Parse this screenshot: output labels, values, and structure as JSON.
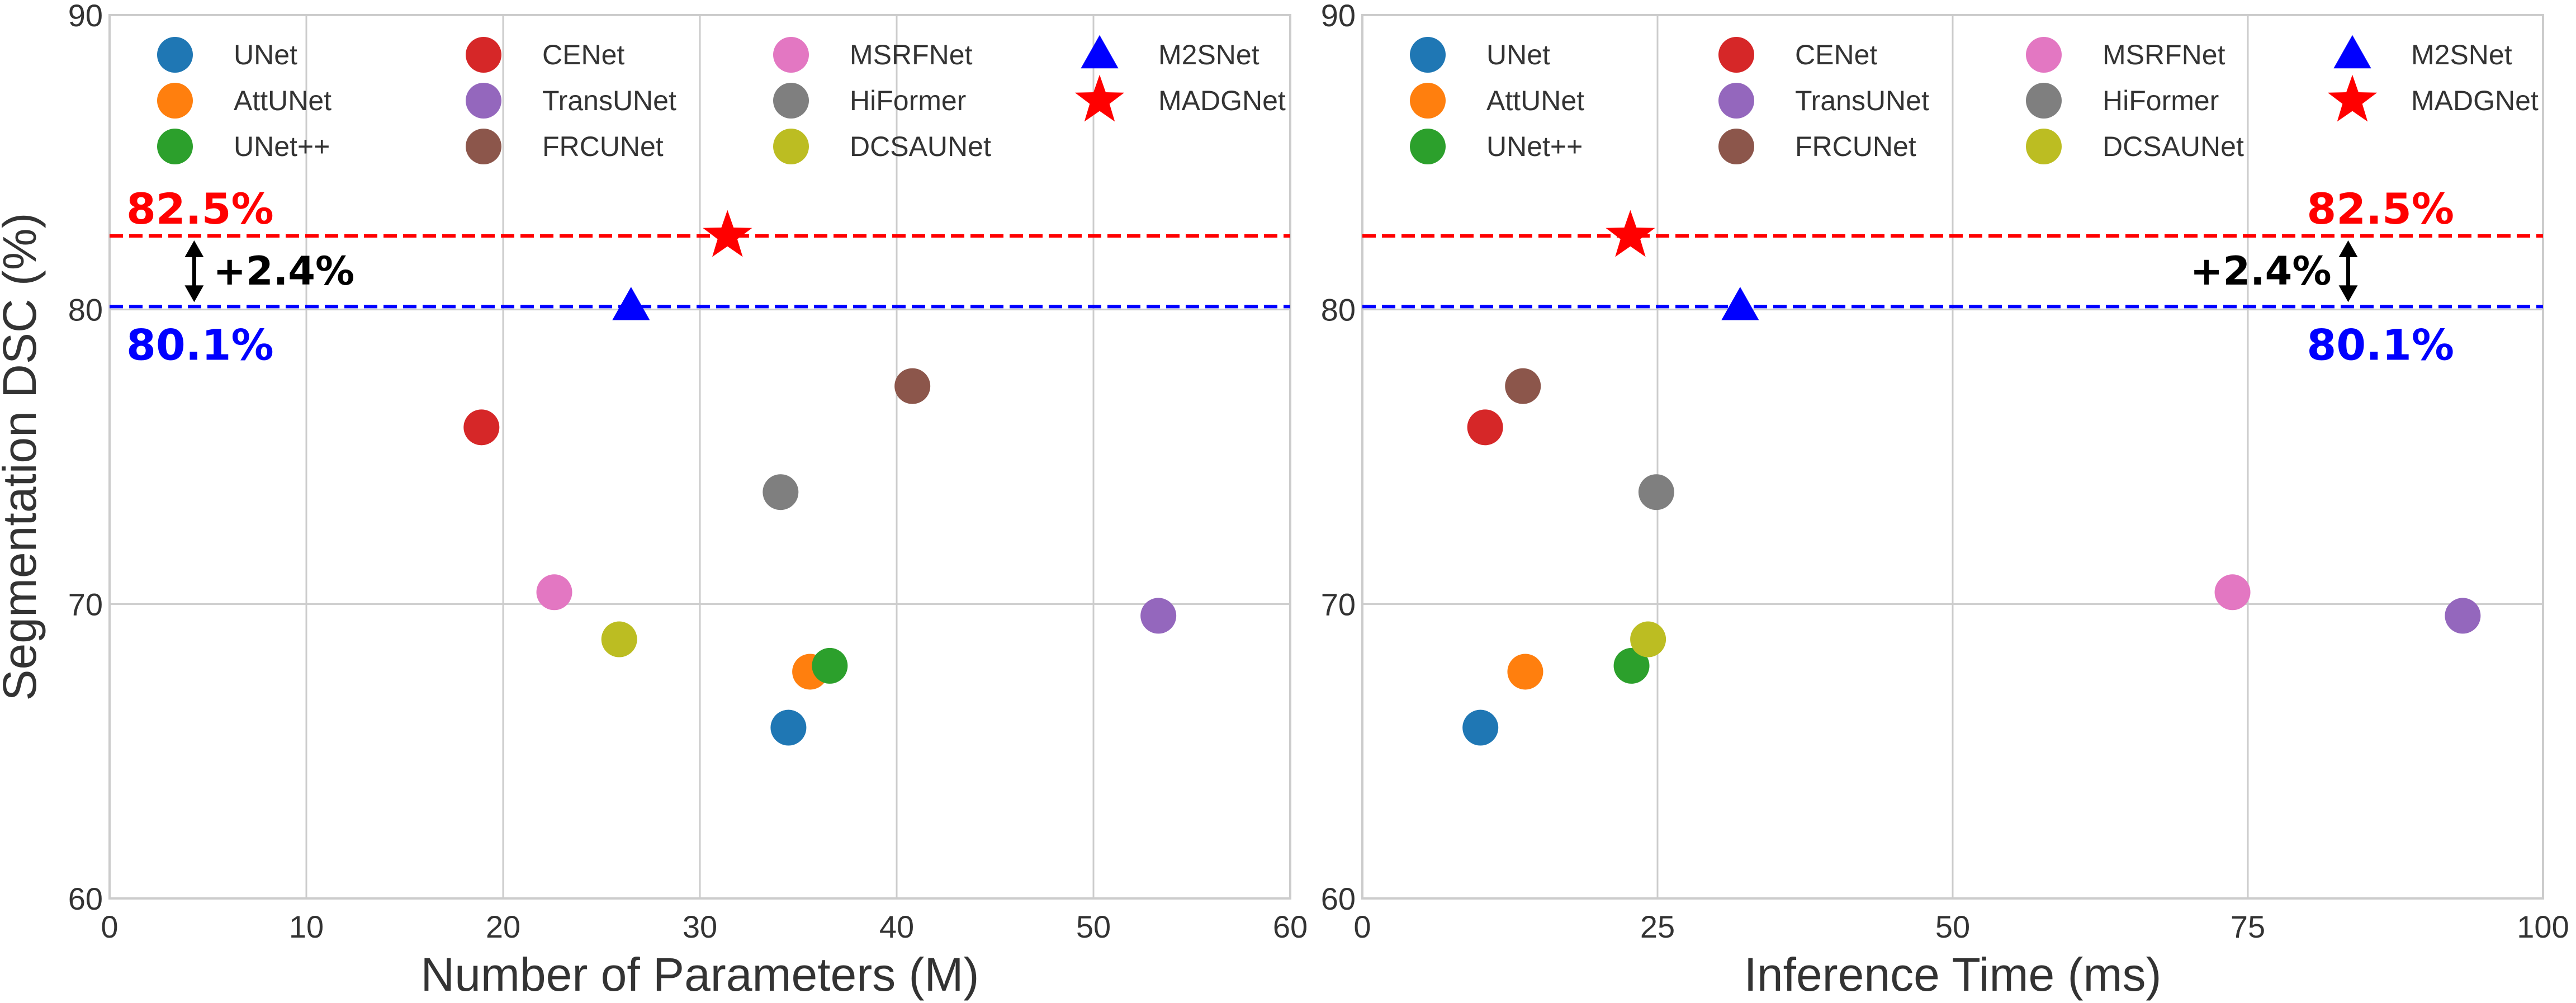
{
  "chart_data": [
    {
      "type": "scatter",
      "id": "params",
      "xlabel": "Number of Parameters (M)",
      "ylabel": "Segmentation DSC (%)",
      "xlim": [
        0,
        60
      ],
      "ylim": [
        60,
        90
      ],
      "xticks": [
        0,
        10,
        20,
        30,
        40,
        50,
        60
      ],
      "yticks": [
        60,
        70,
        80,
        90
      ],
      "grid": true,
      "legend_position": "top",
      "reference_lines": {
        "madgnet": {
          "value": 82.5,
          "label": "82.5%",
          "color": "#ff0000"
        },
        "m2snet": {
          "value": 80.1,
          "label": "80.1%",
          "color": "#0000ff"
        },
        "difference_label": "+2.4%",
        "difference_at_x": 4.3
      },
      "series": [
        {
          "name": "UNet",
          "x": 34.5,
          "y": 65.8,
          "color": "#1f77b4",
          "marker": "circle"
        },
        {
          "name": "AttUNet",
          "x": 35.6,
          "y": 67.7,
          "color": "#ff7f0e",
          "marker": "circle"
        },
        {
          "name": "UNet++",
          "x": 36.6,
          "y": 67.9,
          "color": "#2ca02c",
          "marker": "circle"
        },
        {
          "name": "CENet",
          "x": 18.9,
          "y": 76.0,
          "color": "#d62728",
          "marker": "circle"
        },
        {
          "name": "TransUNet",
          "x": 53.3,
          "y": 69.6,
          "color": "#9467bd",
          "marker": "circle"
        },
        {
          "name": "FRCUNet",
          "x": 40.8,
          "y": 77.4,
          "color": "#8c564b",
          "marker": "circle"
        },
        {
          "name": "MSRFNet",
          "x": 22.6,
          "y": 70.4,
          "color": "#e377c2",
          "marker": "circle"
        },
        {
          "name": "HiFormer",
          "x": 34.1,
          "y": 73.8,
          "color": "#7f7f7f",
          "marker": "circle"
        },
        {
          "name": "DCSAUNet",
          "x": 25.9,
          "y": 68.8,
          "color": "#bcbd22",
          "marker": "circle"
        },
        {
          "name": "M2SNet",
          "x": 26.5,
          "y": 80.1,
          "color": "#0000ff",
          "marker": "triangle"
        },
        {
          "name": "MADGNet",
          "x": 31.4,
          "y": 82.5,
          "color": "#ff0000",
          "marker": "star"
        }
      ]
    },
    {
      "type": "scatter",
      "id": "time",
      "xlabel": "Inference Time (ms)",
      "ylabel": "",
      "xlim": [
        0,
        100
      ],
      "ylim": [
        60,
        90
      ],
      "xticks": [
        0,
        25,
        50,
        75,
        100
      ],
      "yticks": [
        60,
        70,
        80,
        90
      ],
      "grid": true,
      "legend_position": "top",
      "reference_lines": {
        "madgnet": {
          "value": 82.5,
          "label": "82.5%",
          "color": "#ff0000"
        },
        "m2snet": {
          "value": 80.1,
          "label": "80.1%",
          "color": "#0000ff"
        },
        "difference_label": "+2.4%",
        "difference_at_x": 83.5
      },
      "series": [
        {
          "name": "UNet",
          "x": 10.0,
          "y": 65.8,
          "color": "#1f77b4",
          "marker": "circle"
        },
        {
          "name": "AttUNet",
          "x": 13.8,
          "y": 67.7,
          "color": "#ff7f0e",
          "marker": "circle"
        },
        {
          "name": "UNet++",
          "x": 22.8,
          "y": 67.9,
          "color": "#2ca02c",
          "marker": "circle"
        },
        {
          "name": "CENet",
          "x": 10.4,
          "y": 76.0,
          "color": "#d62728",
          "marker": "circle"
        },
        {
          "name": "TransUNet",
          "x": 93.2,
          "y": 69.6,
          "color": "#9467bd",
          "marker": "circle"
        },
        {
          "name": "FRCUNet",
          "x": 13.6,
          "y": 77.4,
          "color": "#8c564b",
          "marker": "circle"
        },
        {
          "name": "MSRFNet",
          "x": 73.7,
          "y": 70.4,
          "color": "#e377c2",
          "marker": "circle"
        },
        {
          "name": "HiFormer",
          "x": 24.9,
          "y": 73.8,
          "color": "#7f7f7f",
          "marker": "circle"
        },
        {
          "name": "DCSAUNet",
          "x": 24.2,
          "y": 68.8,
          "color": "#bcbd22",
          "marker": "circle"
        },
        {
          "name": "M2SNet",
          "x": 32.0,
          "y": 80.1,
          "color": "#0000ff",
          "marker": "triangle"
        },
        {
          "name": "MADGNet",
          "x": 22.7,
          "y": 82.5,
          "color": "#ff0000",
          "marker": "star"
        }
      ]
    }
  ]
}
